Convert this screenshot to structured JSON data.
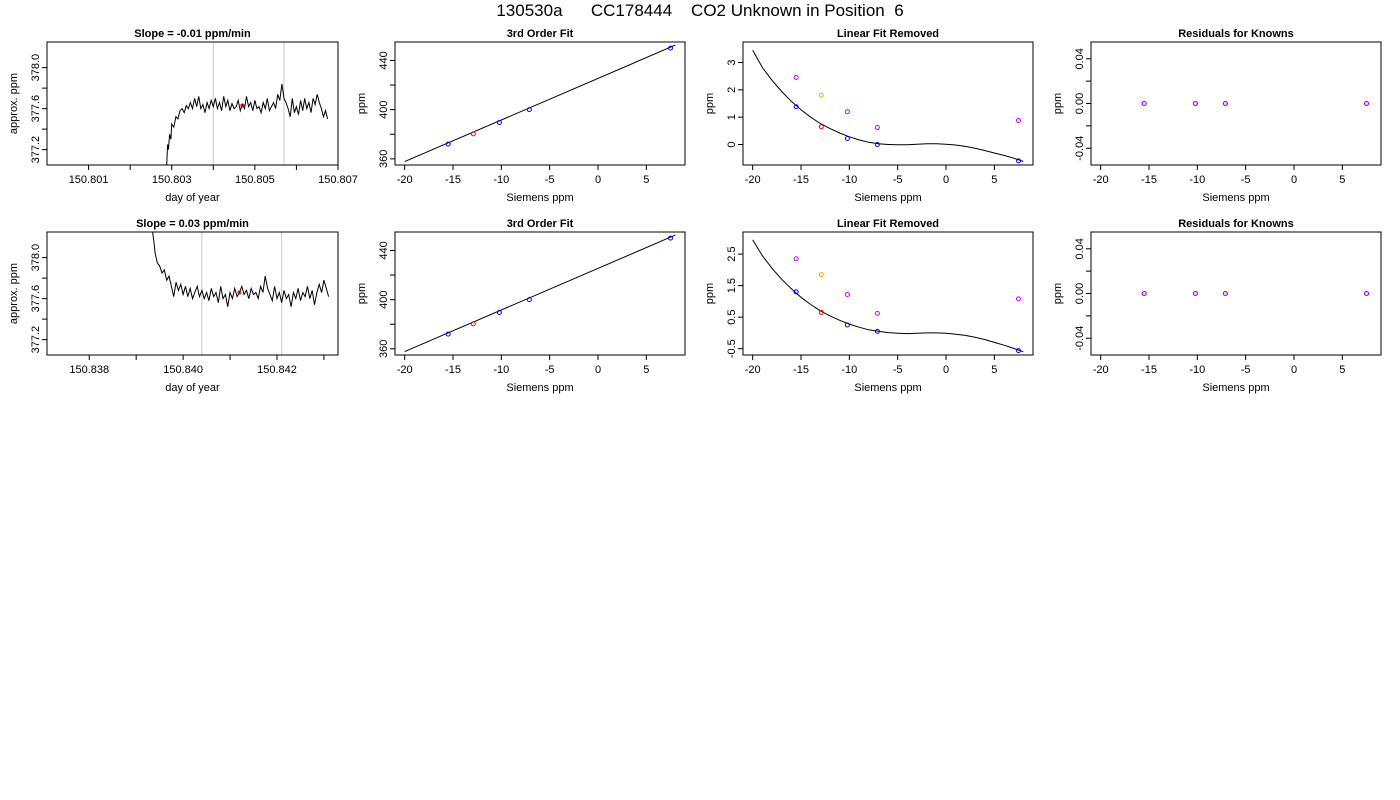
{
  "page": {
    "title": "130530a      CC178444    CO2 Unknown in Position  6"
  },
  "chart_data": [
    {
      "type": "line",
      "title": "Slope =  -0.01  ppm/min",
      "xlabel": "day of year",
      "ylabel": "approx. ppm",
      "xlim": [
        150.8,
        150.807
      ],
      "ylim": [
        377.05,
        378.25
      ],
      "xticks": [
        150.801,
        150.802,
        150.803,
        150.804,
        150.805,
        150.806,
        150.807
      ],
      "xtick_labels": [
        "150.801",
        "",
        "150.803",
        "",
        "150.805",
        "",
        "150.807"
      ],
      "yticks": [
        377.2,
        377.4,
        377.6,
        377.8,
        378.0
      ],
      "ytick_labels": [
        "377.2",
        "",
        "377.6",
        "",
        "378.0"
      ],
      "vlines": [
        150.804,
        150.8057
      ],
      "marker": {
        "x": 150.8047,
        "y": 377.63,
        "color": "#ff0000"
      },
      "series": [
        {
          "color": "#000000",
          "x": [
            150.80288,
            150.8029,
            150.80292,
            150.80295,
            150.80298,
            150.803,
            150.80305,
            150.8031,
            150.80315,
            150.8032,
            150.80325,
            150.8033,
            150.80335,
            150.8034,
            150.80345,
            150.8035,
            150.80355,
            150.8036,
            150.80365,
            150.8037,
            150.80375,
            150.8038,
            150.80385,
            150.8039,
            150.80395,
            150.804,
            150.80405,
            150.8041,
            150.80415,
            150.8042,
            150.80425,
            150.8043,
            150.80435,
            150.8044,
            150.80445,
            150.8045,
            150.80455,
            150.8046,
            150.80465,
            150.8047,
            150.80475,
            150.8048,
            150.80485,
            150.8049,
            150.80495,
            150.805,
            150.80505,
            150.8051,
            150.80515,
            150.8052,
            150.80525,
            150.8053,
            150.80535,
            150.8054,
            150.80545,
            150.8055,
            150.80555,
            150.8056,
            150.80565,
            150.8057,
            150.80575,
            150.8058,
            150.80585,
            150.8059,
            150.80595,
            150.806,
            150.80605,
            150.8061,
            150.80615,
            150.8062,
            150.80625,
            150.8063,
            150.80635,
            150.8064,
            150.80645,
            150.8065,
            150.80655,
            150.8066,
            150.80665,
            150.8067,
            150.80675
          ],
          "y": [
            377.05,
            377.25,
            377.2,
            377.35,
            377.3,
            377.45,
            377.42,
            377.52,
            377.5,
            377.58,
            377.6,
            377.56,
            377.63,
            377.6,
            377.66,
            377.6,
            377.7,
            377.62,
            377.72,
            377.6,
            377.64,
            377.56,
            377.66,
            377.6,
            377.68,
            377.62,
            377.7,
            377.6,
            377.66,
            377.58,
            377.72,
            377.62,
            377.68,
            377.58,
            377.65,
            377.6,
            377.62,
            377.68,
            377.58,
            377.64,
            377.6,
            377.72,
            377.62,
            377.66,
            377.58,
            377.68,
            377.6,
            377.62,
            377.56,
            377.66,
            377.6,
            377.7,
            377.58,
            377.62,
            377.66,
            377.6,
            377.74,
            377.68,
            377.84,
            377.7,
            377.66,
            377.6,
            377.52,
            377.7,
            377.56,
            377.62,
            377.54,
            377.68,
            377.58,
            377.7,
            377.6,
            377.66,
            377.56,
            377.7,
            377.64,
            377.74,
            377.66,
            377.6,
            377.52,
            377.58,
            377.5
          ]
        }
      ]
    },
    {
      "type": "scatter",
      "title": "3rd Order Fit",
      "xlabel": "Siemens ppm",
      "ylabel": "ppm",
      "xlim": [
        -21,
        9
      ],
      "ylim": [
        355,
        455
      ],
      "xticks": [
        -20,
        -15,
        -10,
        -5,
        0,
        5
      ],
      "xtick_labels": [
        "-20",
        "-15",
        "-10",
        "-5",
        "0",
        "5"
      ],
      "yticks": [
        360,
        380,
        400,
        420,
        440
      ],
      "ytick_labels": [
        "360",
        "",
        "400",
        "",
        "440"
      ],
      "fit": {
        "x": [
          -20,
          8
        ],
        "y": [
          357.8,
          452.5
        ],
        "color": "#000000"
      },
      "points": [
        {
          "x": -15.5,
          "y": 372.0,
          "color": "#0000ff"
        },
        {
          "x": -12.9,
          "y": 380.3,
          "color": "#ff0000"
        },
        {
          "x": -10.2,
          "y": 389.6,
          "color": "#0000ff"
        },
        {
          "x": -7.1,
          "y": 400.0,
          "color": "#0000ff"
        },
        {
          "x": 7.5,
          "y": 450.0,
          "color": "#0000ff"
        }
      ]
    },
    {
      "type": "scatter",
      "title": "Linear Fit Removed",
      "xlabel": "Siemens ppm",
      "ylabel": "ppm",
      "xlim": [
        -21,
        9
      ],
      "ylim": [
        -0.75,
        3.75
      ],
      "xticks": [
        -20,
        -15,
        -10,
        -5,
        0,
        5
      ],
      "xtick_labels": [
        "-20",
        "-15",
        "-10",
        "-5",
        "0",
        "5"
      ],
      "yticks": [
        0,
        1,
        2,
        3
      ],
      "ytick_labels": [
        "0",
        "1",
        "2",
        "3"
      ],
      "fit": {
        "x": [
          -20,
          -19,
          -18,
          -17,
          -16,
          -15,
          -14,
          -13,
          -12,
          -11,
          -10,
          -9,
          -8,
          -7,
          -6,
          -5,
          -4,
          -3,
          -2,
          -1,
          0,
          1,
          2,
          3,
          4,
          5,
          6,
          7,
          8
        ],
        "y": [
          3.45,
          2.82,
          2.35,
          1.94,
          1.58,
          1.27,
          1.0,
          0.77,
          0.58,
          0.42,
          0.28,
          0.17,
          0.08,
          0.03,
          0.0,
          -0.01,
          -0.01,
          0.01,
          0.03,
          0.03,
          0.01,
          -0.02,
          -0.07,
          -0.14,
          -0.22,
          -0.31,
          -0.4,
          -0.5,
          -0.62
        ],
        "color": "#000000"
      },
      "points": [
        {
          "x": -15.5,
          "y": 1.38,
          "color": "#0000ff"
        },
        {
          "x": -12.9,
          "y": 0.65,
          "color": "#ff0000"
        },
        {
          "x": -10.2,
          "y": 0.22,
          "color": "#0000ff"
        },
        {
          "x": -7.1,
          "y": 0.0,
          "color": "#0000ff"
        },
        {
          "x": 7.5,
          "y": -0.6,
          "color": "#0000ff"
        },
        {
          "x": -15.5,
          "y": 2.45,
          "color": "#cc00ff"
        },
        {
          "x": -12.9,
          "y": 1.8,
          "color": "#ffa500"
        },
        {
          "x": -10.2,
          "y": 1.2,
          "color": "#cc00ff"
        },
        {
          "x": -7.1,
          "y": 0.62,
          "color": "#cc00ff"
        },
        {
          "x": 7.5,
          "y": 0.88,
          "color": "#cc00ff"
        }
      ]
    },
    {
      "type": "scatter",
      "title": "Residuals for Knowns",
      "xlabel": "Siemens ppm",
      "ylabel": "ppm",
      "xlim": [
        -21,
        9
      ],
      "ylim": [
        -0.055,
        0.055
      ],
      "xticks": [
        -20,
        -15,
        -10,
        -5,
        0,
        5
      ],
      "xtick_labels": [
        "-20",
        "-15",
        "-10",
        "-5",
        "0",
        "5"
      ],
      "yticks": [
        -0.04,
        -0.02,
        0.0,
        0.02,
        0.04
      ],
      "ytick_labels": [
        "-0.04",
        "",
        "0.00",
        "",
        "0.04"
      ],
      "points": [
        {
          "x": -15.5,
          "y": 0.0,
          "color": "#0000ff"
        },
        {
          "x": -10.2,
          "y": 0.0,
          "color": "#0000ff"
        },
        {
          "x": -7.1,
          "y": 0.0,
          "color": "#0000ff"
        },
        {
          "x": 7.5,
          "y": 0.0,
          "color": "#0000ff"
        },
        {
          "x": -15.5,
          "y": 0.0,
          "color": "#cc00ff"
        },
        {
          "x": -10.2,
          "y": 0.0,
          "color": "#cc00ff"
        },
        {
          "x": -7.1,
          "y": 0.0,
          "color": "#cc00ff"
        },
        {
          "x": 7.5,
          "y": 0.0,
          "color": "#cc00ff"
        }
      ]
    },
    {
      "type": "line",
      "title": "Slope =  0.03  ppm/min",
      "xlabel": "day of year",
      "ylabel": "approx. ppm",
      "xlim": [
        150.8371,
        150.8433
      ],
      "ylim": [
        377.05,
        378.25
      ],
      "xticks": [
        150.838,
        150.839,
        150.84,
        150.841,
        150.842,
        150.843
      ],
      "xtick_labels": [
        "150.838",
        "",
        "150.840",
        "",
        "150.842",
        ""
      ],
      "yticks": [
        377.2,
        377.4,
        377.6,
        377.8,
        378.0
      ],
      "ytick_labels": [
        "377.2",
        "",
        "377.6",
        "",
        "378.0"
      ],
      "vlines": [
        150.8404,
        150.8421
      ],
      "marker": {
        "x": 150.8412,
        "y": 377.66,
        "color": "#ff0000"
      },
      "series": [
        {
          "color": "#000000",
          "x": [
            150.83935,
            150.83938,
            150.8394,
            150.83945,
            150.8395,
            150.83955,
            150.8396,
            150.83965,
            150.8397,
            150.83975,
            150.8398,
            150.83985,
            150.8399,
            150.83995,
            150.84,
            150.84005,
            150.8401,
            150.84015,
            150.8402,
            150.84025,
            150.8403,
            150.84035,
            150.8404,
            150.84045,
            150.8405,
            150.84055,
            150.8406,
            150.84065,
            150.8407,
            150.84075,
            150.8408,
            150.84085,
            150.8409,
            150.84095,
            150.841,
            150.84105,
            150.8411,
            150.84115,
            150.8412,
            150.84125,
            150.8413,
            150.84135,
            150.8414,
            150.84145,
            150.8415,
            150.84155,
            150.8416,
            150.84165,
            150.8417,
            150.84175,
            150.8418,
            150.84185,
            150.8419,
            150.84195,
            150.842,
            150.84205,
            150.8421,
            150.84215,
            150.8422,
            150.84225,
            150.8423,
            150.84235,
            150.8424,
            150.84245,
            150.8425,
            150.84255,
            150.8426,
            150.84265,
            150.8427,
            150.84275,
            150.8428,
            150.84285,
            150.8429,
            150.84295,
            150.843,
            150.84305,
            150.8431
          ],
          "y": [
            378.25,
            378.15,
            378.05,
            377.95,
            377.92,
            377.85,
            377.88,
            377.78,
            377.82,
            377.72,
            377.62,
            377.76,
            377.68,
            377.74,
            377.64,
            377.72,
            377.62,
            377.7,
            377.6,
            377.66,
            377.72,
            377.62,
            377.68,
            377.6,
            377.66,
            377.58,
            377.7,
            377.62,
            377.66,
            377.56,
            377.72,
            377.6,
            377.64,
            377.52,
            377.66,
            377.6,
            377.7,
            377.62,
            377.66,
            377.72,
            377.64,
            377.68,
            377.6,
            377.7,
            377.64,
            377.66,
            377.6,
            377.72,
            377.66,
            377.82,
            377.7,
            377.64,
            377.58,
            377.72,
            377.6,
            377.66,
            377.56,
            377.68,
            377.6,
            377.64,
            377.52,
            377.66,
            377.6,
            377.7,
            377.58,
            377.66,
            377.62,
            377.72,
            377.6,
            377.68,
            377.54,
            377.66,
            377.74,
            377.66,
            377.78,
            377.7,
            377.62
          ]
        }
      ]
    },
    {
      "type": "scatter",
      "title": "3rd Order Fit",
      "xlabel": "Siemens ppm",
      "ylabel": "ppm",
      "xlim": [
        -21,
        9
      ],
      "ylim": [
        355,
        455
      ],
      "xticks": [
        -20,
        -15,
        -10,
        -5,
        0,
        5
      ],
      "xtick_labels": [
        "-20",
        "-15",
        "-10",
        "-5",
        "0",
        "5"
      ],
      "yticks": [
        360,
        380,
        400,
        420,
        440
      ],
      "ytick_labels": [
        "360",
        "",
        "400",
        "",
        "440"
      ],
      "fit": {
        "x": [
          -20,
          8
        ],
        "y": [
          357.8,
          452.5
        ],
        "color": "#000000"
      },
      "points": [
        {
          "x": -15.5,
          "y": 372.0,
          "color": "#0000ff"
        },
        {
          "x": -12.9,
          "y": 380.3,
          "color": "#ff0000"
        },
        {
          "x": -10.2,
          "y": 389.6,
          "color": "#0000ff"
        },
        {
          "x": -7.1,
          "y": 400.0,
          "color": "#0000ff"
        },
        {
          "x": 7.5,
          "y": 450.0,
          "color": "#0000ff"
        }
      ]
    },
    {
      "type": "scatter",
      "title": "Linear Fit Removed",
      "xlabel": "Siemens ppm",
      "ylabel": "ppm",
      "xlim": [
        -21,
        9
      ],
      "ylim": [
        -0.7,
        3.2
      ],
      "xticks": [
        -20,
        -15,
        -10,
        -5,
        0,
        5
      ],
      "xtick_labels": [
        "-20",
        "-15",
        "-10",
        "-5",
        "0",
        "5"
      ],
      "yticks": [
        -0.5,
        0.5,
        1.5,
        2.5
      ],
      "ytick_labels": [
        "-0.5",
        "0.5",
        "1.5",
        "2.5"
      ],
      "fit": {
        "x": [
          -20,
          -19,
          -18,
          -17,
          -16,
          -15,
          -14,
          -13,
          -12,
          -11,
          -10,
          -9,
          -8,
          -7,
          -6,
          -5,
          -4,
          -3,
          -2,
          -1,
          0,
          1,
          2,
          3,
          4,
          5,
          6,
          7,
          8
        ],
        "y": [
          2.95,
          2.45,
          2.05,
          1.7,
          1.4,
          1.13,
          0.9,
          0.7,
          0.54,
          0.4,
          0.28,
          0.18,
          0.1,
          0.05,
          0.01,
          -0.01,
          -0.02,
          -0.01,
          0.0,
          0.0,
          -0.01,
          -0.04,
          -0.08,
          -0.14,
          -0.21,
          -0.3,
          -0.39,
          -0.49,
          -0.6
        ],
        "color": "#000000"
      },
      "points": [
        {
          "x": -15.5,
          "y": 1.3,
          "color": "#0000ff"
        },
        {
          "x": -12.9,
          "y": 0.65,
          "color": "#ff0000"
        },
        {
          "x": -10.2,
          "y": 0.25,
          "color": "#0000ff"
        },
        {
          "x": -7.1,
          "y": 0.05,
          "color": "#0000ff"
        },
        {
          "x": 7.5,
          "y": -0.56,
          "color": "#0000ff"
        },
        {
          "x": -15.5,
          "y": 2.35,
          "color": "#cc00ff"
        },
        {
          "x": -12.9,
          "y": 1.85,
          "color": "#ffa500"
        },
        {
          "x": -10.2,
          "y": 1.22,
          "color": "#cc00ff"
        },
        {
          "x": -7.1,
          "y": 0.62,
          "color": "#cc00ff"
        },
        {
          "x": 7.5,
          "y": 1.08,
          "color": "#cc00ff"
        }
      ]
    },
    {
      "type": "scatter",
      "title": "Residuals for Knowns",
      "xlabel": "Siemens ppm",
      "ylabel": "ppm",
      "xlim": [
        -21,
        9
      ],
      "ylim": [
        -0.055,
        0.055
      ],
      "xticks": [
        -20,
        -15,
        -10,
        -5,
        0,
        5
      ],
      "xtick_labels": [
        "-20",
        "-15",
        "-10",
        "-5",
        "0",
        "5"
      ],
      "yticks": [
        -0.04,
        -0.02,
        0.0,
        0.02,
        0.04
      ],
      "ytick_labels": [
        "-0.04",
        "",
        "0.00",
        "",
        "0.04"
      ],
      "points": [
        {
          "x": -15.5,
          "y": 0.0,
          "color": "#0000ff"
        },
        {
          "x": -10.2,
          "y": 0.0,
          "color": "#0000ff"
        },
        {
          "x": -7.1,
          "y": 0.0,
          "color": "#0000ff"
        },
        {
          "x": 7.5,
          "y": 0.0,
          "color": "#0000ff"
        },
        {
          "x": -15.5,
          "y": 0.0,
          "color": "#cc00ff"
        },
        {
          "x": -10.2,
          "y": 0.0,
          "color": "#cc00ff"
        },
        {
          "x": -7.1,
          "y": 0.0,
          "color": "#cc00ff"
        },
        {
          "x": 7.5,
          "y": 0.0,
          "color": "#cc00ff"
        }
      ]
    }
  ]
}
